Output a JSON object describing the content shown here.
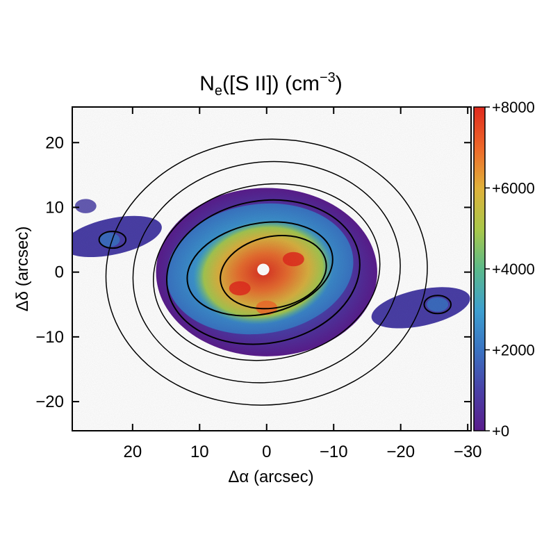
{
  "chart_data": {
    "type": "heatmap",
    "title": {
      "base": "N",
      "sub": "e",
      "middle": "([S II]) (cm",
      "sup": "−3",
      "end": ")"
    },
    "xlabel": "Δα (arcsec)",
    "ylabel": "Δδ (arcsec)",
    "xlim": [
      29,
      -30.5
    ],
    "ylim": [
      -24.5,
      25.5
    ],
    "x_ticks": [
      {
        "value": 20,
        "label": "20"
      },
      {
        "value": 10,
        "label": "10"
      },
      {
        "value": 0,
        "label": "0"
      },
      {
        "value": -10,
        "label": "−10"
      },
      {
        "value": -20,
        "label": "−20"
      },
      {
        "value": -30,
        "label": "−30"
      }
    ],
    "y_ticks": [
      {
        "value": 20,
        "label": "20"
      },
      {
        "value": 10,
        "label": "10"
      },
      {
        "value": 0,
        "label": "0"
      },
      {
        "value": -10,
        "label": "−10"
      },
      {
        "value": -20,
        "label": "−20"
      }
    ],
    "colorbar": {
      "range": [
        0,
        8000
      ],
      "ticks": [
        {
          "value": 8000,
          "label": "+8000"
        },
        {
          "value": 6000,
          "label": "+6000"
        },
        {
          "value": 4000,
          "label": "+4000"
        },
        {
          "value": 2000,
          "label": "+2000"
        },
        {
          "value": 0,
          "label": "+0"
        }
      ],
      "colors": [
        "#5a1d8c",
        "#4a3fa6",
        "#3a73c2",
        "#3d9fd0",
        "#5bb98a",
        "#a8c84a",
        "#e0b13a",
        "#ee6a2a",
        "#e02a1e"
      ]
    },
    "map": {
      "center_density": 6500,
      "inner_density": 4000,
      "mid_density": 2200,
      "outer_density": 900,
      "blob_peaks": [
        {
          "x": 23.5,
          "y": 5,
          "density": 1600
        },
        {
          "x": 27,
          "y": 10.2,
          "density": 900
        },
        {
          "x": -25.5,
          "y": -5,
          "density": 1500
        },
        {
          "x": 4,
          "y": -2.5,
          "density": 7800
        },
        {
          "x": -4,
          "y": 2,
          "density": 7600
        },
        {
          "x": 0,
          "y": -5.5,
          "density": 7400
        }
      ]
    }
  }
}
